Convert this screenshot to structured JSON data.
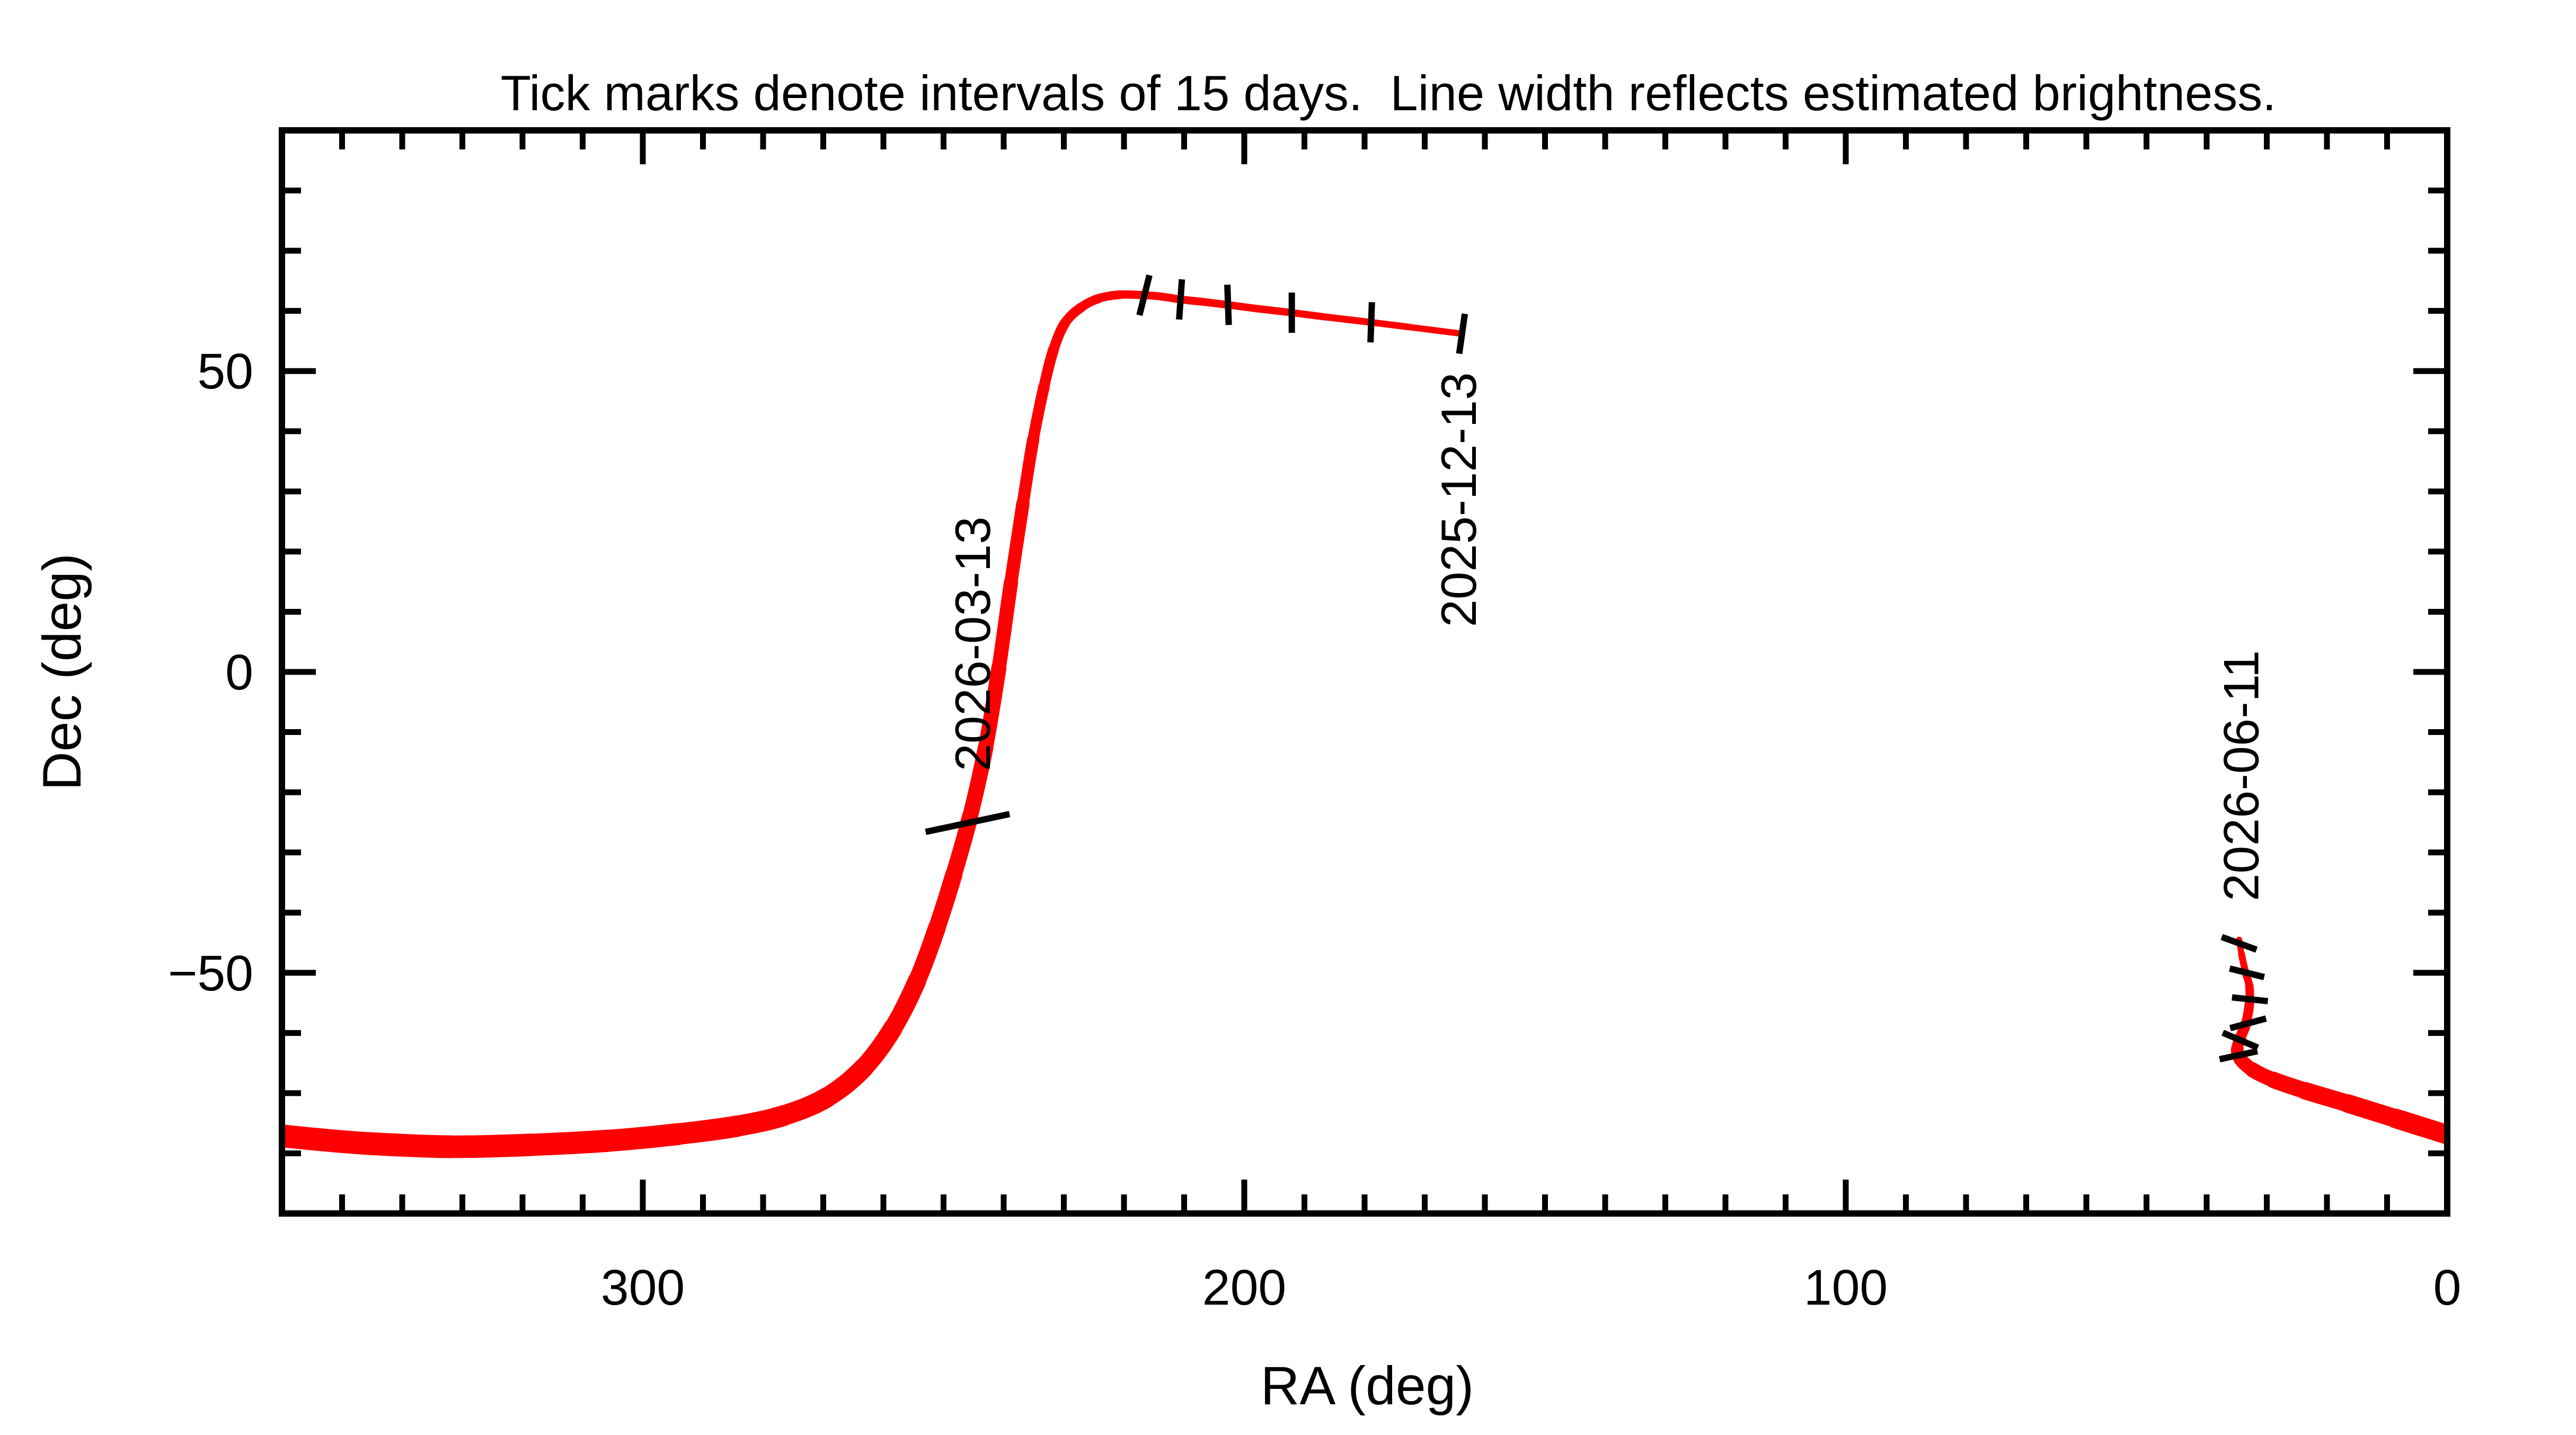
{
  "chart_data": {
    "type": "line",
    "title": "Tick marks denote intervals of 15 days.  Line width reflects estimated brightness.",
    "xlabel": "RA (deg)",
    "ylabel": "Dec (deg)",
    "xlim": [
      360,
      0
    ],
    "ylim": [
      -90,
      90
    ],
    "x_axis_reversed": true,
    "grid": false,
    "legend": "none",
    "axis_color": "#000000",
    "curve_color": "#ff0000",
    "background_color": "#ffffff",
    "x_major_ticks": [
      {
        "value": 300,
        "label": "300"
      },
      {
        "value": 200,
        "label": "200"
      },
      {
        "value": 100,
        "label": "100"
      },
      {
        "value": 0,
        "label": "0"
      }
    ],
    "y_major_ticks": [
      {
        "value": 50,
        "label": "50"
      },
      {
        "value": 0,
        "label": "0"
      },
      {
        "value": -50,
        "label": "−50"
      }
    ],
    "x_minor_step": 10,
    "y_minor_step": 10,
    "series": [
      {
        "name": "track-2025-12-to-2026-03",
        "comment": "points are [RA_deg, Dec_deg, line_width_px]; chronological from 2025-12-13 to wrap at RA 360",
        "points": [
          [
            163.8,
            56.2,
            12
          ],
          [
            172.5,
            57.3,
            12
          ],
          [
            178.9,
            58.1,
            13
          ],
          [
            186.6,
            59.0,
            13
          ],
          [
            192.1,
            59.7,
            14
          ],
          [
            198.1,
            60.4,
            14
          ],
          [
            202.7,
            61.0,
            14
          ],
          [
            206.9,
            61.5,
            15
          ],
          [
            210.6,
            61.9,
            15
          ],
          [
            213.9,
            62.4,
            15
          ],
          [
            216.6,
            62.6,
            15
          ],
          [
            220.5,
            62.7,
            16
          ],
          [
            224.1,
            62.1,
            17
          ],
          [
            227.1,
            60.6,
            18
          ],
          [
            229.8,
            58.0,
            19
          ],
          [
            231.7,
            53.6,
            20
          ],
          [
            233.3,
            47.4,
            21
          ],
          [
            235.1,
            38.6,
            22
          ],
          [
            236.8,
            28.0,
            24
          ],
          [
            238.8,
            14.8,
            26
          ],
          [
            240.8,
            0.7,
            28
          ],
          [
            243.0,
            -12.5,
            29
          ],
          [
            245.6,
            -24.1,
            30
          ],
          [
            248.3,
            -33.7,
            32
          ],
          [
            251.1,
            -42.5,
            33
          ],
          [
            254.4,
            -51.3,
            34
          ],
          [
            258.4,
            -59.2,
            36
          ],
          [
            263.3,
            -65.8,
            37
          ],
          [
            269.4,
            -70.7,
            38
          ],
          [
            276.5,
            -73.7,
            39
          ],
          [
            284.4,
            -75.5,
            40
          ],
          [
            294.1,
            -76.8,
            41
          ],
          [
            305.6,
            -77.9,
            42
          ],
          [
            318.8,
            -78.6,
            42
          ],
          [
            332.0,
            -78.9,
            43
          ],
          [
            345.2,
            -78.4,
            43
          ],
          [
            354.0,
            -77.7,
            43
          ],
          [
            360.0,
            -77.1,
            43
          ]
        ]
      },
      {
        "name": "track-2026-03-to-2026-06",
        "comment": "wrapped branch, chronological from RA 0 to track end 2026-06-11",
        "points": [
          [
            0.0,
            -76.9,
            38
          ],
          [
            8.6,
            -74.2,
            36
          ],
          [
            16.6,
            -71.7,
            34
          ],
          [
            23.6,
            -69.6,
            32
          ],
          [
            28.9,
            -67.8,
            30
          ],
          [
            32.4,
            -66.1,
            27
          ],
          [
            34.4,
            -64.3,
            25
          ],
          [
            34.9,
            -62.7,
            23
          ],
          [
            34.4,
            -60.8,
            21
          ],
          [
            33.5,
            -58.5,
            19
          ],
          [
            32.9,
            -55.2,
            17
          ],
          [
            32.9,
            -52.2,
            15
          ],
          [
            33.5,
            -50.0,
            14
          ],
          [
            34.2,
            -46.9,
            12
          ],
          [
            34.6,
            -44.5,
            11
          ]
        ]
      }
    ],
    "interval_tick_marks": [
      {
        "ra": 163.8,
        "dec": 56.2,
        "rot": 8,
        "len": 76
      },
      {
        "ra": 178.9,
        "dec": 58.1,
        "rot": 2,
        "len": 76
      },
      {
        "ra": 192.1,
        "dec": 59.7,
        "rot": 0,
        "len": 76
      },
      {
        "ra": 202.7,
        "dec": 61.0,
        "rot": -2,
        "len": 76
      },
      {
        "ra": 210.6,
        "dec": 61.9,
        "rot": 4,
        "len": 76
      },
      {
        "ra": 216.6,
        "dec": 62.6,
        "rot": 14,
        "len": 78
      },
      {
        "ra": 246.0,
        "dec": -25.1,
        "rot": 78,
        "len": 162
      },
      {
        "ra": 34.7,
        "dec": -63.7,
        "rot": 78,
        "len": 73
      },
      {
        "ra": 34.4,
        "dec": -61.2,
        "rot": 113,
        "len": 72
      },
      {
        "ra": 33.1,
        "dec": -58.4,
        "rot": 75,
        "len": 70
      },
      {
        "ra": 32.8,
        "dec": -54.4,
        "rot": 96,
        "len": 68
      },
      {
        "ra": 33.3,
        "dec": -50.0,
        "rot": 104,
        "len": 67
      },
      {
        "ra": 34.6,
        "dec": -45.1,
        "rot": 110,
        "len": 70
      }
    ],
    "date_labels": [
      {
        "text": "2025-12-13",
        "ra": 161.5,
        "dec": 49.8,
        "anchor": "end"
      },
      {
        "text": "2026-03-13",
        "ra": 242.3,
        "dec": -16.5,
        "anchor": "start"
      },
      {
        "text": "2026-06-11",
        "ra": 31.4,
        "dec": -38.1,
        "anchor": "start"
      }
    ]
  }
}
